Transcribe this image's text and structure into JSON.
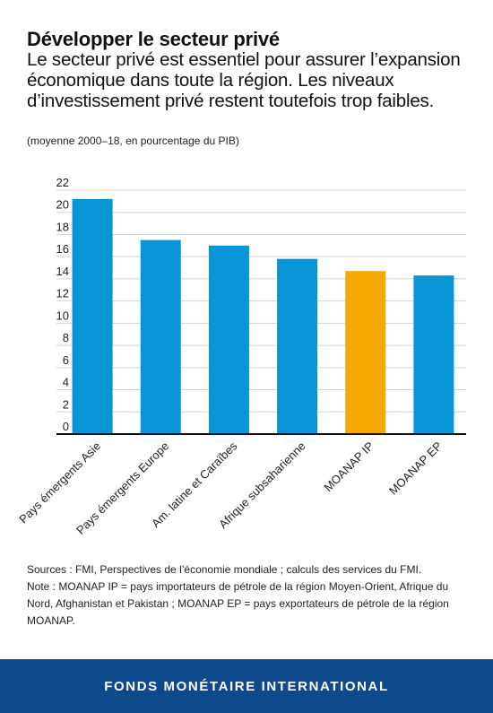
{
  "header": {
    "title": "Développer le secteur privé",
    "subtitle": "Le secteur privé est essentiel pour assurer l’expansion économique dans toute la région. Les niveaux d’investissement privé restent toutefois trop faibles.",
    "note": "(moyenne 2000–18, en pourcentage du PIB)"
  },
  "chart_data": {
    "type": "bar",
    "title": "",
    "xlabel": "",
    "ylabel": "",
    "categories": [
      "Pays émergents Asie",
      "Pays émergents Europe",
      "Am. latine et Caraïbes",
      "Afrique subsaharienne",
      "MOANAP IP",
      "MOANAP EP"
    ],
    "values": [
      21.2,
      17.5,
      17.0,
      15.8,
      14.7,
      14.3
    ],
    "bar_colors": [
      "#0795d6",
      "#0795d6",
      "#0795d6",
      "#0795d6",
      "#f5a800",
      "#0795d6"
    ],
    "ylim": [
      0,
      22
    ],
    "yticks": [
      0,
      2,
      4,
      6,
      8,
      10,
      12,
      14,
      16,
      18,
      20,
      22
    ],
    "grid": true,
    "legend": "none"
  },
  "sources": {
    "text": "Sources : FMI, Perspectives de l’économie mondiale ; calculs des services du FMI.",
    "note": "Note : MOANAP IP = pays importateurs de pétrole de la région Moyen-Orient, Afrique du Nord, Afghanistan et Pakistan ; MOANAP EP = pays exportateurs de pétrole de la région MOANAP."
  },
  "footer": {
    "label": "FONDS MONÉTAIRE INTERNATIONAL"
  }
}
